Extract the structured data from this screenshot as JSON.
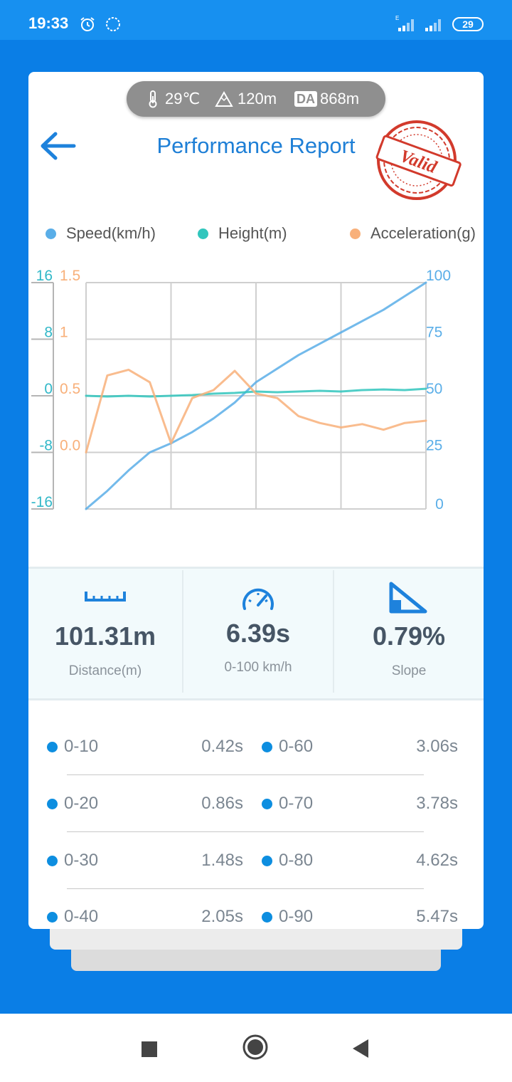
{
  "status_bar": {
    "time": "19:33",
    "battery": "29"
  },
  "conditions": {
    "temperature": "29℃",
    "altitude": "120m",
    "da_label": "DA",
    "density_altitude": "868m"
  },
  "header": {
    "title": "Performance Report",
    "stamp_text": "Valid"
  },
  "legend": [
    {
      "label": "Speed(km/h)",
      "color": "#5aaee8"
    },
    {
      "label": "Height(m)",
      "color": "#31c6bd"
    },
    {
      "label": "Acceleration(g)",
      "color": "#f8b07a"
    }
  ],
  "chart_data": {
    "type": "line",
    "x": [
      0,
      0.5,
      1,
      1.5,
      2,
      2.5,
      3,
      3.5,
      4,
      4.5,
      5,
      5.5,
      6,
      6.5,
      7,
      7.5,
      8
    ],
    "series": [
      {
        "name": "Speed(km/h)",
        "axis": "right",
        "color": "#5aaee8",
        "values": [
          0,
          8,
          17,
          25,
          29,
          34,
          40,
          47,
          56,
          62,
          68,
          73,
          78,
          83,
          88,
          94,
          100
        ]
      },
      {
        "name": "Height(m)",
        "axis": "left",
        "color": "#31c6bd",
        "values": [
          0,
          -0.1,
          0,
          -0.1,
          0,
          0.1,
          0.3,
          0.4,
          0.6,
          0.5,
          0.6,
          0.7,
          0.6,
          0.8,
          0.9,
          0.8,
          1
        ]
      },
      {
        "name": "Acceleration(g)",
        "axis": "left2",
        "color": "#f8b07a",
        "values": [
          0,
          0.68,
          0.73,
          0.62,
          0.08,
          0.48,
          0.55,
          0.72,
          0.52,
          0.48,
          0.32,
          0.26,
          0.22,
          0.25,
          0.2,
          0.26,
          0.28
        ]
      }
    ],
    "y_left_ticks": [
      "16",
      "8",
      "0",
      "-8",
      "-16"
    ],
    "ylim_left": [
      -16,
      16
    ],
    "y_left2_ticks": [
      "1.5",
      "1",
      "0.5",
      "0.0"
    ],
    "ylim_left2": [
      -0.5,
      1.5
    ],
    "y_right_ticks": [
      "100",
      "75",
      "50",
      "25",
      "0"
    ],
    "ylim_right": [
      0,
      100
    ],
    "grid": true
  },
  "stats": [
    {
      "value": "101.31m",
      "label": "Distance(m)",
      "icon": "ruler-icon"
    },
    {
      "value": "6.39s",
      "label": "0-100 km/h",
      "icon": "speedometer-icon"
    },
    {
      "value": "0.79%",
      "label": "Slope",
      "icon": "slope-icon"
    }
  ],
  "splits": [
    {
      "label": "0-10",
      "value": "0.42s"
    },
    {
      "label": "0-20",
      "value": "0.86s"
    },
    {
      "label": "0-30",
      "value": "1.48s"
    },
    {
      "label": "0-40",
      "value": "2.05s"
    },
    {
      "label": "0-60",
      "value": "3.06s"
    },
    {
      "label": "0-70",
      "value": "3.78s"
    },
    {
      "label": "0-80",
      "value": "4.62s"
    },
    {
      "label": "0-90",
      "value": "5.47s"
    }
  ]
}
